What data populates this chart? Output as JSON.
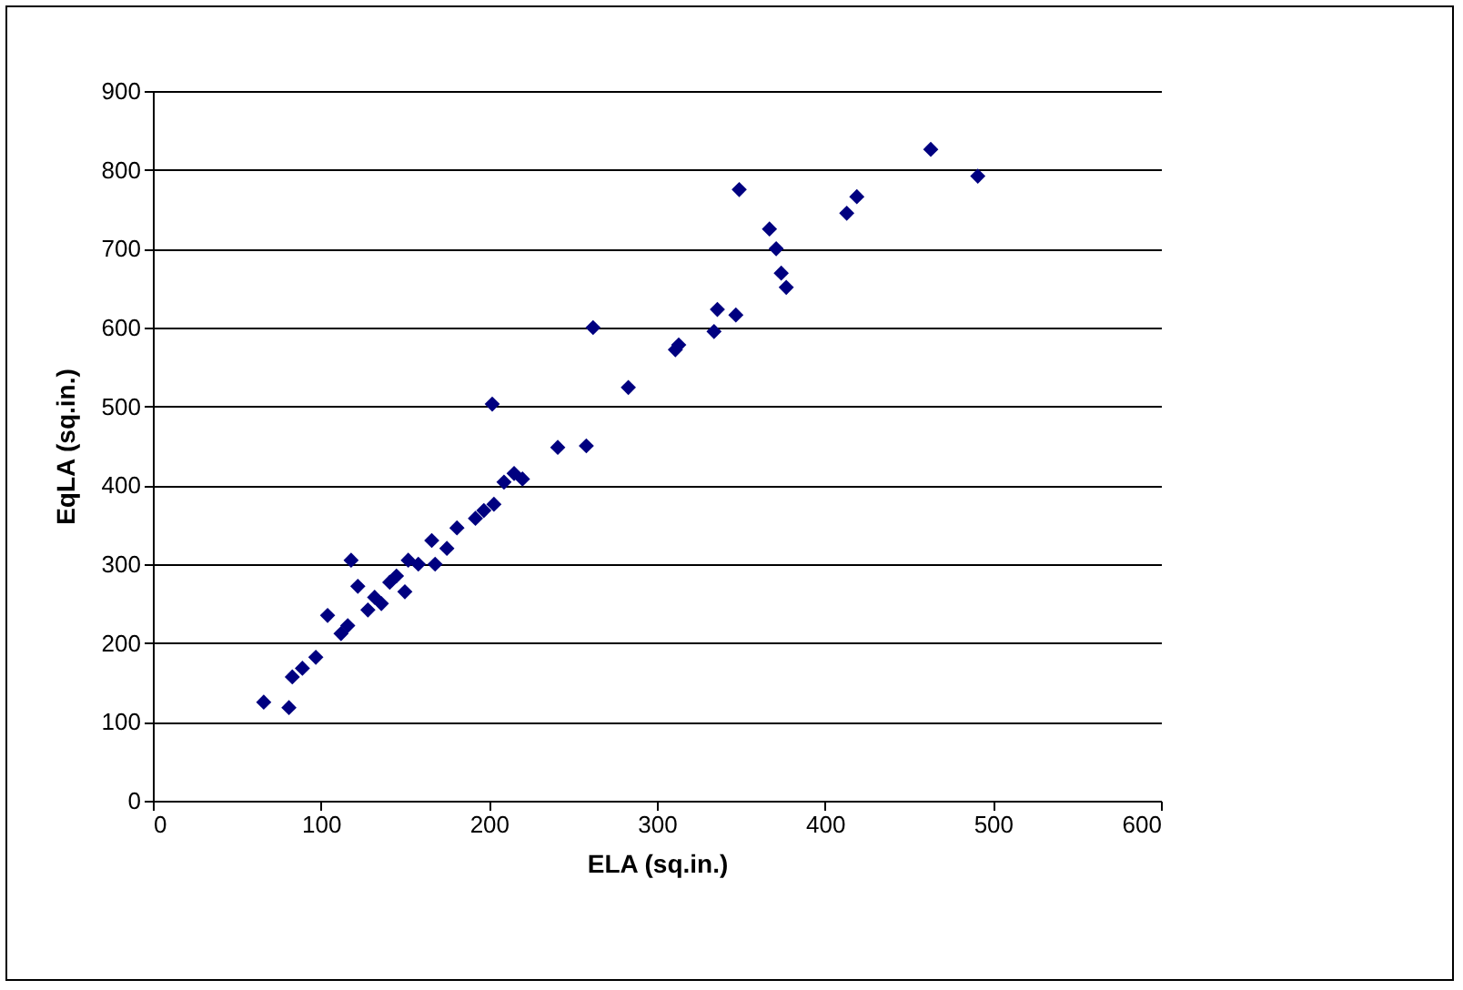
{
  "chart_data": {
    "type": "scatter",
    "xlabel": "ELA (sq.in.)",
    "ylabel": "EqLA (sq.in.)",
    "xlim": [
      0,
      600
    ],
    "xticks": [
      0,
      100,
      200,
      300,
      400,
      500,
      600
    ],
    "ylim": [
      0,
      900
    ],
    "yticks": [
      0,
      100,
      200,
      300,
      400,
      500,
      600,
      700,
      800,
      900
    ],
    "grid": "y",
    "marker": "diamond",
    "legend": false,
    "series": [
      {
        "color": "#000080",
        "x": [
          66,
          81,
          83,
          89,
          97,
          104,
          112,
          118,
          122,
          128,
          132,
          141,
          150,
          152,
          166,
          168,
          181,
          192,
          203,
          202,
          209,
          215,
          220,
          241,
          258,
          262,
          283,
          311,
          313,
          334,
          336,
          347,
          349,
          367,
          371,
          374,
          377,
          413,
          419,
          463,
          491,
          116,
          136,
          145,
          158,
          175,
          197
        ],
        "values": [
          125,
          118,
          157,
          168,
          182,
          235,
          212,
          305,
          272,
          242,
          258,
          277,
          265,
          305,
          330,
          300,
          346,
          358,
          376,
          503,
          404,
          415,
          408,
          448,
          450,
          600,
          524,
          572,
          578,
          595,
          623,
          616,
          775,
          725,
          700,
          669,
          651,
          745,
          766,
          826,
          792,
          222,
          250,
          285,
          300,
          320,
          368
        ]
      }
    ]
  }
}
